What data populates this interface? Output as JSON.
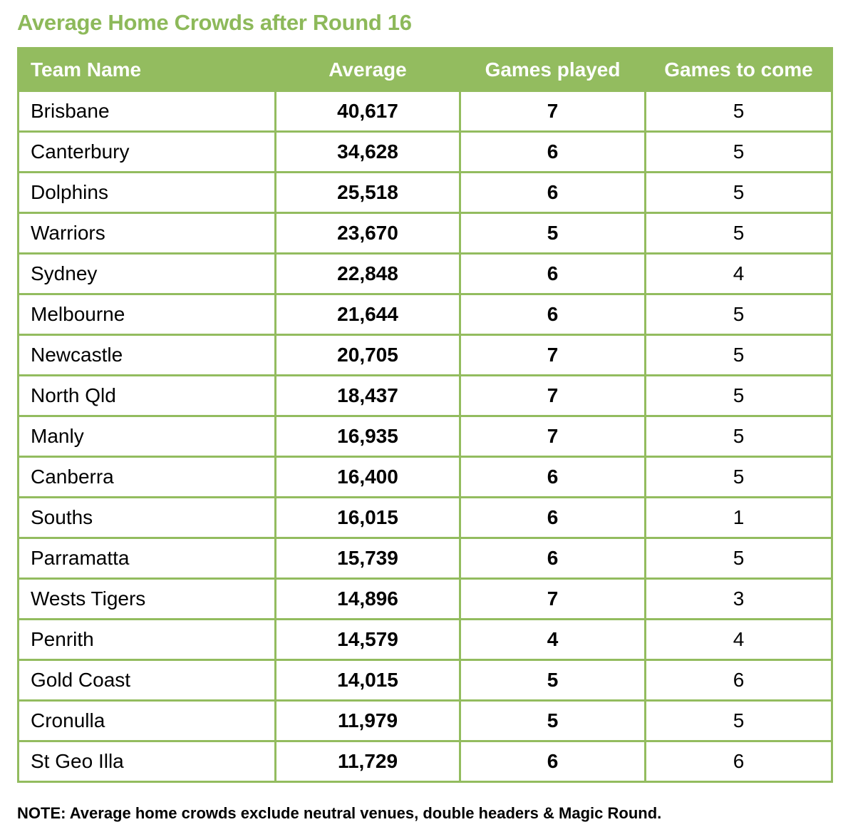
{
  "title": "Average Home Crowds after Round 16",
  "table": {
    "headers": [
      "Team Name",
      "Average",
      "Games played",
      "Games to come"
    ],
    "rows": [
      {
        "team": "Brisbane",
        "average": "40,617",
        "played": "7",
        "to_come": "5"
      },
      {
        "team": "Canterbury",
        "average": "34,628",
        "played": "6",
        "to_come": "5"
      },
      {
        "team": "Dolphins",
        "average": "25,518",
        "played": "6",
        "to_come": "5"
      },
      {
        "team": "Warriors",
        "average": "23,670",
        "played": "5",
        "to_come": "5"
      },
      {
        "team": "Sydney",
        "average": "22,848",
        "played": "6",
        "to_come": "4"
      },
      {
        "team": "Melbourne",
        "average": "21,644",
        "played": "6",
        "to_come": "5"
      },
      {
        "team": "Newcastle",
        "average": "20,705",
        "played": "7",
        "to_come": "5"
      },
      {
        "team": "North Qld",
        "average": "18,437",
        "played": "7",
        "to_come": "5"
      },
      {
        "team": "Manly",
        "average": "16,935",
        "played": "7",
        "to_come": "5"
      },
      {
        "team": "Canberra",
        "average": "16,400",
        "played": "6",
        "to_come": "5"
      },
      {
        "team": "Souths",
        "average": "16,015",
        "played": "6",
        "to_come": "1"
      },
      {
        "team": "Parramatta",
        "average": "15,739",
        "played": "6",
        "to_come": "5"
      },
      {
        "team": "Wests Tigers",
        "average": "14,896",
        "played": "7",
        "to_come": "3"
      },
      {
        "team": "Penrith",
        "average": "14,579",
        "played": "4",
        "to_come": "4"
      },
      {
        "team": "Gold Coast",
        "average": "14,015",
        "played": "5",
        "to_come": "6"
      },
      {
        "team": "Cronulla",
        "average": "11,979",
        "played": "5",
        "to_come": "5"
      },
      {
        "team": "St Geo Illa",
        "average": "11,729",
        "played": "6",
        "to_come": "6"
      }
    ]
  },
  "note": "NOTE: Average home crowds exclude neutral venues, double headers & Magic Round.",
  "colors": {
    "accent_green": "#93bc5f",
    "title_green": "#8db95a",
    "header_text": "#ffffff"
  }
}
